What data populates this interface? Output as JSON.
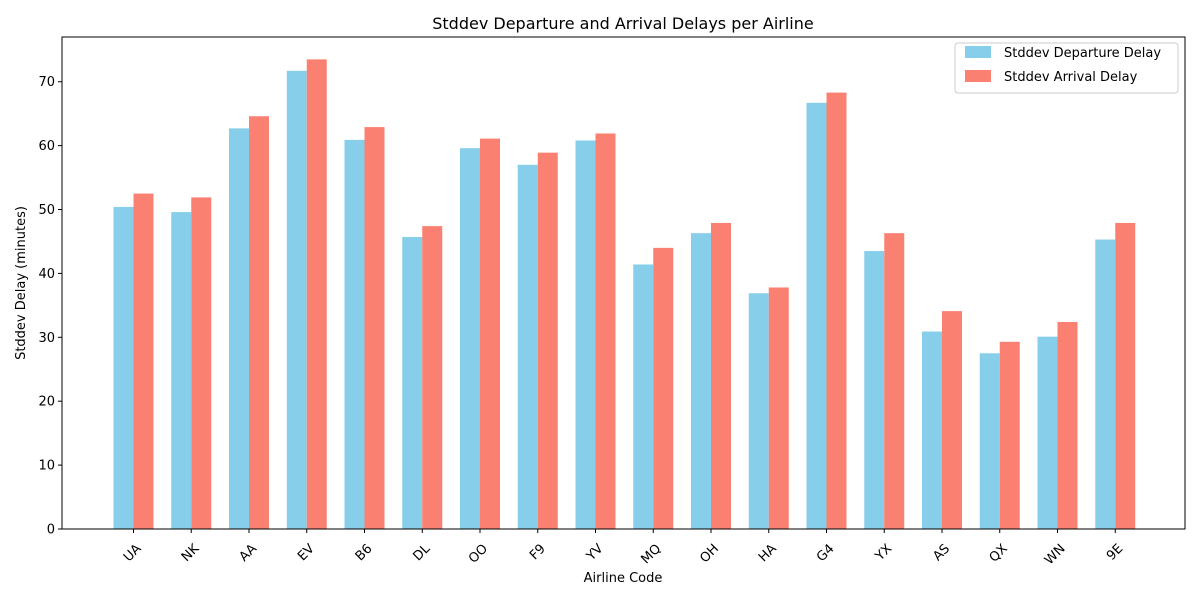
{
  "chart_data": {
    "type": "bar",
    "title": "Stddev Departure and Arrival Delays per Airline",
    "xlabel": "Airline Code",
    "ylabel": "Stddev Delay (minutes)",
    "ylim": [
      0,
      77
    ],
    "yticks": [
      0,
      10,
      20,
      30,
      40,
      50,
      60,
      70
    ],
    "grid": false,
    "legend_position": "top-right",
    "categories": [
      "UA",
      "NK",
      "AA",
      "EV",
      "B6",
      "DL",
      "OO",
      "F9",
      "YV",
      "MQ",
      "OH",
      "HA",
      "G4",
      "YX",
      "AS",
      "QX",
      "WN",
      "9E"
    ],
    "series": [
      {
        "name": "Stddev Departure Delay",
        "color": "#87ceeb",
        "values": [
          50.4,
          49.6,
          62.7,
          71.7,
          60.9,
          45.7,
          59.6,
          57.0,
          60.8,
          41.4,
          46.3,
          36.9,
          66.7,
          43.5,
          30.9,
          27.5,
          30.1,
          45.3
        ]
      },
      {
        "name": "Stddev Arrival Delay",
        "color": "#fa8072",
        "values": [
          52.5,
          51.9,
          64.6,
          73.5,
          62.9,
          47.4,
          61.1,
          58.9,
          61.9,
          44.0,
          47.9,
          37.8,
          68.3,
          46.3,
          34.1,
          29.3,
          32.4,
          47.9
        ]
      }
    ]
  }
}
